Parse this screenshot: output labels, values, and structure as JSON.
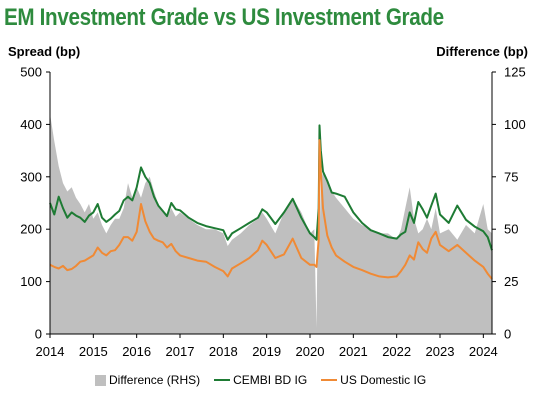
{
  "chart_data": {
    "type": "line",
    "title": "EM Investment Grade vs US Investment Grade",
    "ylabel": "Spread (bp)",
    "y2label": "Difference (bp)",
    "ylim": [
      0,
      500
    ],
    "y2lim": [
      0,
      125
    ],
    "yticks": [
      "0",
      "100",
      "200",
      "300",
      "400",
      "500"
    ],
    "y2ticks": [
      "0",
      "25",
      "50",
      "75",
      "100",
      "125"
    ],
    "xticks": [
      "2014",
      "2015",
      "2016",
      "2017",
      "2018",
      "2019",
      "2020",
      "2021",
      "2022",
      "2023",
      "2024"
    ],
    "xlim": [
      2014.0,
      2024.2
    ],
    "legend": [
      "Difference (RHS)",
      "CEMBI BD IG",
      "US Domestic IG"
    ],
    "series": [
      {
        "name": "CEMBI BD IG",
        "color": "#1e7b34",
        "x": [
          2014.0,
          2014.1,
          2014.2,
          2014.3,
          2014.4,
          2014.5,
          2014.6,
          2014.7,
          2014.8,
          2014.9,
          2015.0,
          2015.1,
          2015.2,
          2015.3,
          2015.4,
          2015.5,
          2015.6,
          2015.7,
          2015.8,
          2015.9,
          2016.0,
          2016.1,
          2016.2,
          2016.3,
          2016.4,
          2016.5,
          2016.6,
          2016.7,
          2016.8,
          2016.9,
          2017.0,
          2017.2,
          2017.4,
          2017.6,
          2017.8,
          2018.0,
          2018.1,
          2018.2,
          2018.4,
          2018.6,
          2018.8,
          2018.9,
          2019.0,
          2019.2,
          2019.4,
          2019.6,
          2019.8,
          2020.0,
          2020.1,
          2020.15,
          2020.2,
          2020.22,
          2020.25,
          2020.3,
          2020.4,
          2020.5,
          2020.6,
          2020.8,
          2021.0,
          2021.2,
          2021.4,
          2021.6,
          2021.8,
          2022.0,
          2022.1,
          2022.2,
          2022.3,
          2022.4,
          2022.5,
          2022.6,
          2022.7,
          2022.8,
          2022.9,
          2023.0,
          2023.2,
          2023.4,
          2023.6,
          2023.8,
          2024.0,
          2024.1,
          2024.2
        ],
        "values": [
          250,
          228,
          262,
          240,
          222,
          232,
          226,
          222,
          214,
          226,
          232,
          248,
          222,
          214,
          220,
          228,
          235,
          255,
          262,
          255,
          280,
          318,
          300,
          288,
          262,
          245,
          235,
          225,
          250,
          238,
          236,
          222,
          212,
          206,
          202,
          198,
          180,
          192,
          202,
          212,
          222,
          238,
          232,
          210,
          232,
          258,
          222,
          192,
          185,
          180,
          240,
          398,
          350,
          310,
          292,
          270,
          268,
          262,
          232,
          212,
          198,
          192,
          185,
          182,
          190,
          195,
          232,
          212,
          252,
          238,
          222,
          245,
          268,
          228,
          212,
          245,
          218,
          205,
          196,
          185,
          160
        ]
      },
      {
        "name": "US Domestic IG",
        "color": "#f08a35",
        "x": [
          2014.0,
          2014.1,
          2014.2,
          2014.3,
          2014.4,
          2014.5,
          2014.6,
          2014.7,
          2014.8,
          2014.9,
          2015.0,
          2015.1,
          2015.2,
          2015.3,
          2015.4,
          2015.5,
          2015.6,
          2015.7,
          2015.8,
          2015.9,
          2016.0,
          2016.1,
          2016.2,
          2016.3,
          2016.4,
          2016.5,
          2016.6,
          2016.7,
          2016.8,
          2016.9,
          2017.0,
          2017.2,
          2017.4,
          2017.6,
          2017.8,
          2018.0,
          2018.1,
          2018.2,
          2018.4,
          2018.6,
          2018.8,
          2018.9,
          2019.0,
          2019.2,
          2019.4,
          2019.6,
          2019.8,
          2020.0,
          2020.1,
          2020.15,
          2020.2,
          2020.22,
          2020.25,
          2020.3,
          2020.4,
          2020.5,
          2020.6,
          2020.8,
          2021.0,
          2021.2,
          2021.4,
          2021.6,
          2021.8,
          2022.0,
          2022.1,
          2022.2,
          2022.3,
          2022.4,
          2022.5,
          2022.6,
          2022.7,
          2022.8,
          2022.9,
          2023.0,
          2023.2,
          2023.4,
          2023.6,
          2023.8,
          2024.0,
          2024.1,
          2024.2
        ],
        "values": [
          132,
          128,
          125,
          130,
          122,
          124,
          130,
          138,
          140,
          145,
          150,
          165,
          155,
          150,
          158,
          160,
          170,
          185,
          185,
          178,
          195,
          248,
          215,
          195,
          182,
          178,
          175,
          165,
          172,
          158,
          150,
          145,
          140,
          138,
          128,
          120,
          110,
          125,
          135,
          145,
          160,
          178,
          170,
          145,
          152,
          182,
          145,
          132,
          132,
          128,
          180,
          370,
          310,
          240,
          188,
          165,
          150,
          138,
          128,
          122,
          115,
          110,
          108,
          110,
          120,
          132,
          150,
          142,
          175,
          162,
          155,
          182,
          195,
          170,
          158,
          170,
          155,
          140,
          128,
          115,
          105
        ]
      },
      {
        "name": "Difference (RHS)",
        "color": "#bfbfbf",
        "type": "area",
        "axis": "right",
        "x": [
          2014.0,
          2014.1,
          2014.2,
          2014.3,
          2014.4,
          2014.5,
          2014.6,
          2014.7,
          2014.8,
          2014.9,
          2015.0,
          2015.1,
          2015.2,
          2015.3,
          2015.4,
          2015.5,
          2015.6,
          2015.7,
          2015.8,
          2015.9,
          2016.0,
          2016.1,
          2016.2,
          2016.3,
          2016.4,
          2016.5,
          2016.6,
          2016.7,
          2016.8,
          2016.9,
          2017.0,
          2017.2,
          2017.4,
          2017.6,
          2017.8,
          2018.0,
          2018.1,
          2018.2,
          2018.4,
          2018.6,
          2018.8,
          2018.9,
          2019.0,
          2019.2,
          2019.4,
          2019.6,
          2019.8,
          2020.0,
          2020.1,
          2020.15,
          2020.2,
          2020.22,
          2020.25,
          2020.3,
          2020.4,
          2020.5,
          2020.6,
          2020.8,
          2021.0,
          2021.2,
          2021.4,
          2021.6,
          2021.8,
          2022.0,
          2022.1,
          2022.2,
          2022.3,
          2022.4,
          2022.5,
          2022.6,
          2022.7,
          2022.8,
          2022.9,
          2023.0,
          2023.2,
          2023.4,
          2023.6,
          2023.8,
          2024.0,
          2024.1,
          2024.2
        ],
        "values": [
          105,
          92,
          80,
          72,
          68,
          70,
          65,
          62,
          58,
          62,
          55,
          58,
          52,
          48,
          52,
          55,
          55,
          60,
          72,
          65,
          70,
          65,
          72,
          75,
          68,
          62,
          58,
          56,
          60,
          56,
          58,
          55,
          52,
          50,
          50,
          48,
          42,
          45,
          48,
          52,
          55,
          58,
          55,
          48,
          58,
          65,
          58,
          48,
          50,
          3,
          95,
          45,
          72,
          78,
          72,
          68,
          65,
          60,
          55,
          52,
          50,
          48,
          48,
          45,
          50,
          60,
          70,
          55,
          48,
          50,
          55,
          50,
          60,
          48,
          50,
          45,
          52,
          48,
          62,
          50,
          48
        ]
      }
    ]
  }
}
